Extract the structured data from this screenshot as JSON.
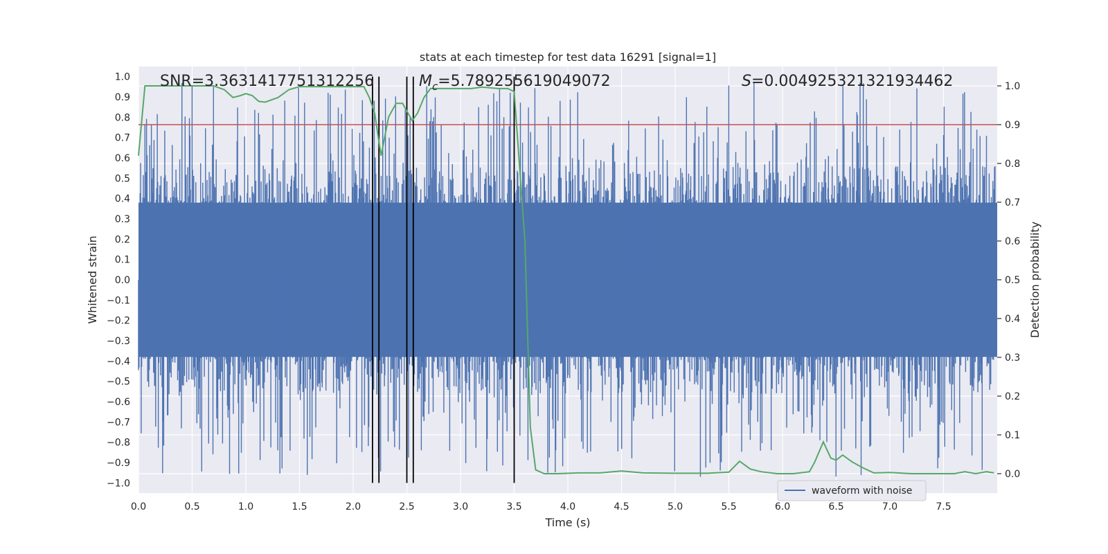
{
  "chart_data": {
    "type": "line",
    "title": "stats at each timestep for test data 16291 [signal=1]",
    "xlabel": "Time (s)",
    "ylabel_left": "Whitened strain",
    "ylabel_right": "Detection probability",
    "xlim": [
      0.0,
      8.0
    ],
    "ylim_left": [
      -1.05,
      1.05
    ],
    "ylim_right": [
      -0.05,
      1.05
    ],
    "x_ticks": [
      0.0,
      0.5,
      1.0,
      1.5,
      2.0,
      2.5,
      3.0,
      3.5,
      4.0,
      4.5,
      5.0,
      5.5,
      6.0,
      6.5,
      7.0,
      7.5
    ],
    "x_tick_labels": [
      "0.0",
      "0.5",
      "1.0",
      "1.5",
      "2.0",
      "2.5",
      "3.0",
      "3.5",
      "4.0",
      "4.5",
      "5.0",
      "5.5",
      "6.0",
      "6.5",
      "7.0",
      "7.5"
    ],
    "y_left_ticks": [
      1.0,
      0.9,
      0.8,
      0.7,
      0.6,
      0.5,
      0.4,
      0.3,
      0.2,
      0.1,
      0.0,
      -0.1,
      -0.2,
      -0.3,
      -0.4,
      -0.5,
      -0.6,
      -0.7,
      -0.8,
      -0.9,
      -1.0
    ],
    "y_left_tick_labels": [
      "1.0",
      "0.9",
      "0.8",
      "0.7",
      "0.6",
      "0.5",
      "0.4",
      "0.3",
      "0.2",
      "0.1",
      "0.0",
      "−0.1",
      "−0.2",
      "−0.3",
      "−0.4",
      "−0.5",
      "−0.6",
      "−0.7",
      "−0.8",
      "−0.9",
      "−1.0"
    ],
    "y_right_ticks": [
      1.0,
      0.9,
      0.8,
      0.7,
      0.6,
      0.5,
      0.4,
      0.3,
      0.2,
      0.1,
      0.0
    ],
    "y_right_tick_labels": [
      "1.0",
      "0.9",
      "0.8",
      "0.7",
      "0.6",
      "0.5",
      "0.4",
      "0.3",
      "0.2",
      "0.1",
      "0.0"
    ],
    "annotations": {
      "snr": "SNR=3.3631417751312256",
      "mc_symbol": "M",
      "mc_sub": "c",
      "mc_value": "=5.789255619049072",
      "s_symbol": "S",
      "s_value": "=0.004925321321934462"
    },
    "threshold": {
      "value": 0.9,
      "axis": "right",
      "color": "#c44e52"
    },
    "vertical_lines": [
      2.18,
      2.24,
      2.5,
      2.56,
      3.5
    ],
    "waveform": {
      "name": "waveform with noise",
      "color": "#4c72b0",
      "n_points": 1600,
      "core_amplitude": 0.38,
      "max_amplitude": 0.97
    },
    "detection_probability": {
      "name": "Detection probability",
      "color": "#55a868",
      "points": [
        [
          0.0,
          0.82
        ],
        [
          0.06,
          1.0
        ],
        [
          0.12,
          1.0
        ],
        [
          0.3,
          1.0
        ],
        [
          0.7,
          1.0
        ],
        [
          0.8,
          0.99
        ],
        [
          0.88,
          0.97
        ],
        [
          0.95,
          0.975
        ],
        [
          1.0,
          0.98
        ],
        [
          1.06,
          0.975
        ],
        [
          1.12,
          0.96
        ],
        [
          1.18,
          0.958
        ],
        [
          1.3,
          0.97
        ],
        [
          1.4,
          0.99
        ],
        [
          1.5,
          0.998
        ],
        [
          1.8,
          0.998
        ],
        [
          2.1,
          0.998
        ],
        [
          2.15,
          0.97
        ],
        [
          2.2,
          0.93
        ],
        [
          2.26,
          0.82
        ],
        [
          2.33,
          0.92
        ],
        [
          2.4,
          0.955
        ],
        [
          2.46,
          0.955
        ],
        [
          2.55,
          0.91
        ],
        [
          2.6,
          0.93
        ],
        [
          2.66,
          0.97
        ],
        [
          2.72,
          0.993
        ],
        [
          2.9,
          0.993
        ],
        [
          3.1,
          0.993
        ],
        [
          3.2,
          0.997
        ],
        [
          3.35,
          0.993
        ],
        [
          3.44,
          0.993
        ],
        [
          3.5,
          0.985
        ],
        [
          3.6,
          0.6
        ],
        [
          3.65,
          0.12
        ],
        [
          3.7,
          0.01
        ],
        [
          3.78,
          0.0
        ],
        [
          3.9,
          0.0
        ],
        [
          4.1,
          0.002
        ],
        [
          4.3,
          0.002
        ],
        [
          4.5,
          0.007
        ],
        [
          4.7,
          0.002
        ],
        [
          5.0,
          0.001
        ],
        [
          5.3,
          0.001
        ],
        [
          5.5,
          0.004
        ],
        [
          5.6,
          0.032
        ],
        [
          5.7,
          0.012
        ],
        [
          5.8,
          0.005
        ],
        [
          5.95,
          0.0
        ],
        [
          6.1,
          0.0
        ],
        [
          6.25,
          0.005
        ],
        [
          6.3,
          0.03
        ],
        [
          6.38,
          0.082
        ],
        [
          6.45,
          0.04
        ],
        [
          6.5,
          0.035
        ],
        [
          6.56,
          0.048
        ],
        [
          6.65,
          0.03
        ],
        [
          6.75,
          0.015
        ],
        [
          6.85,
          0.002
        ],
        [
          7.0,
          0.003
        ],
        [
          7.2,
          0.0
        ],
        [
          7.6,
          0.0
        ],
        [
          7.7,
          0.005
        ],
        [
          7.8,
          0.0
        ],
        [
          7.9,
          0.005
        ],
        [
          7.97,
          0.002
        ]
      ]
    },
    "legend": {
      "position": "lower-right",
      "entries": [
        "waveform with noise"
      ]
    }
  }
}
